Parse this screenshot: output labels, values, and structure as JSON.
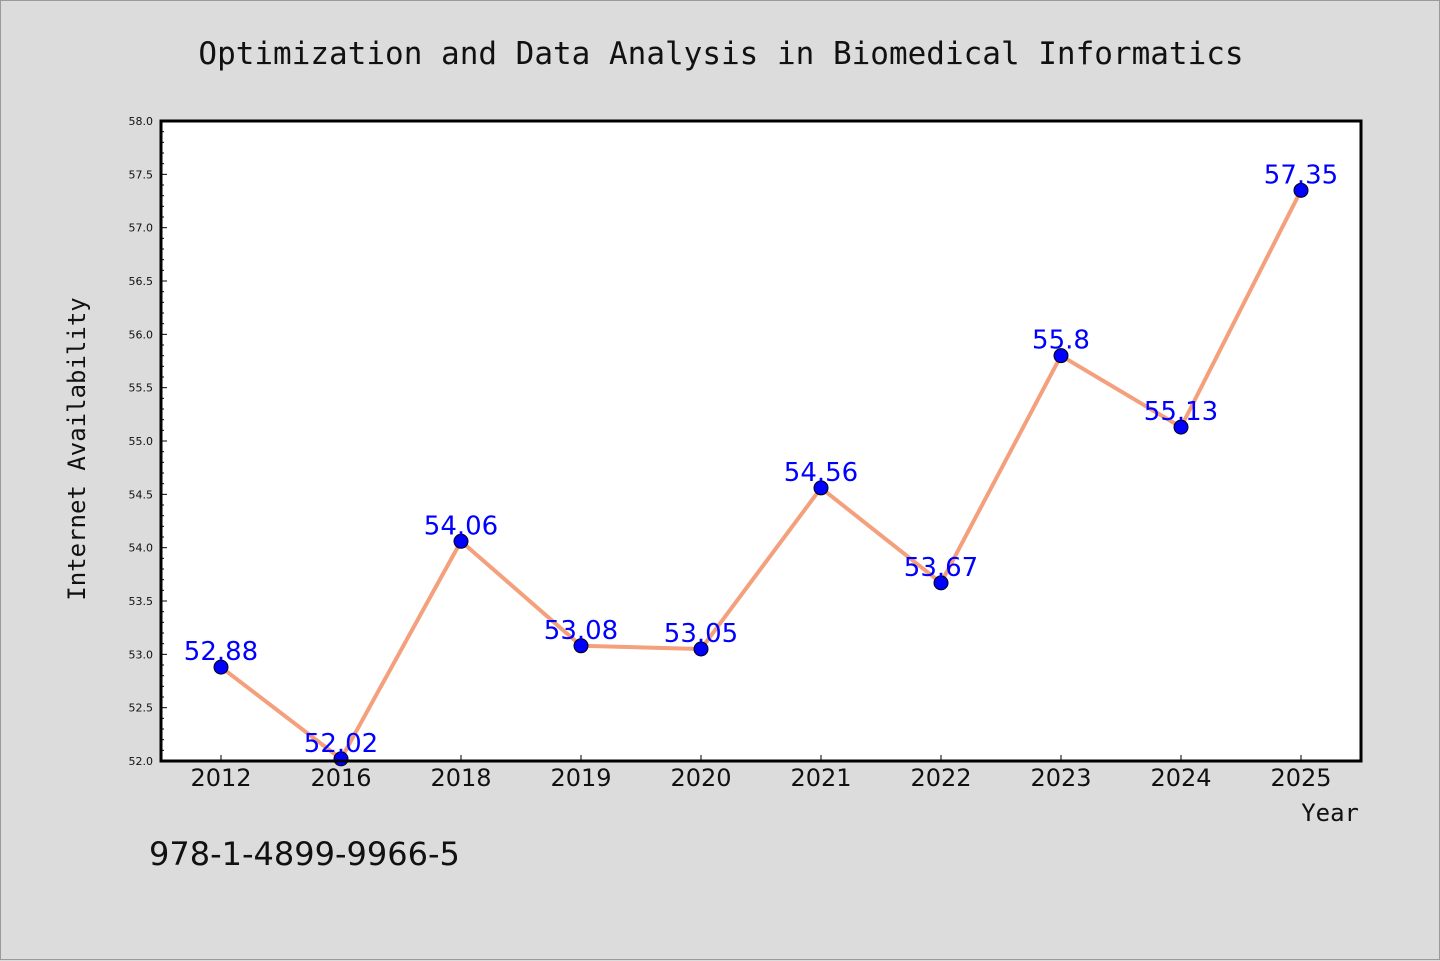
{
  "isbn": "978-1-4899-9966-5",
  "colors": {
    "background": "#dcdcdc",
    "plot_background": "#ffffff",
    "line": "#f4a07c",
    "marker": "#0000ff",
    "data_label": "#0000ff"
  },
  "chart_data": {
    "type": "line",
    "title": "Optimization and Data Analysis in Biomedical Informatics",
    "xlabel": "Year",
    "ylabel": "Internet Availability",
    "categories": [
      "2012",
      "2016",
      "2018",
      "2019",
      "2020",
      "2021",
      "2022",
      "2023",
      "2024",
      "2025"
    ],
    "series": [
      {
        "values": [
          52.88,
          52.02,
          54.06,
          53.08,
          53.05,
          54.56,
          53.67,
          55.8,
          55.13,
          57.35
        ],
        "data_labels": [
          "52.88",
          "52.02",
          "54.06",
          "53.08",
          "53.05",
          "54.56",
          "53.67",
          "55.8",
          "55.13",
          "57.35"
        ]
      }
    ],
    "ylim": [
      52.0,
      58.0
    ],
    "yticks": [
      "52.0",
      "52.5",
      "53.0",
      "53.5",
      "54.0",
      "54.5",
      "55.0",
      "55.5",
      "56.0",
      "56.5",
      "57.0",
      "57.5",
      "58.0"
    ],
    "grid": false,
    "legend": "none"
  }
}
